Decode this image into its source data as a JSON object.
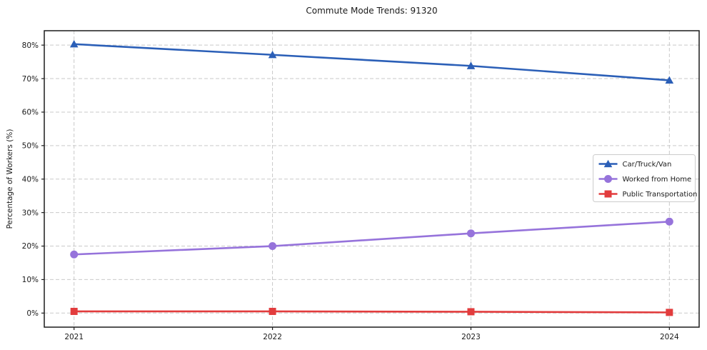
{
  "chart_data": {
    "type": "line",
    "title": "Commute Mode Trends: 91320",
    "xlabel": "",
    "ylabel": "Percentage of Workers (%)",
    "x": [
      2021,
      2022,
      2023,
      2024
    ],
    "xtick_labels": [
      "2021",
      "2022",
      "2023",
      "2024"
    ],
    "yticks": [
      0,
      10,
      20,
      30,
      40,
      50,
      60,
      70,
      80
    ],
    "ytick_labels": [
      "0%",
      "10%",
      "20%",
      "30%",
      "40%",
      "50%",
      "60%",
      "70%",
      "80%"
    ],
    "ylim": [
      -4.2,
      84.3
    ],
    "xlim": [
      2020.85,
      2024.15
    ],
    "grid": true,
    "grid_style": "dashed",
    "legend_position": "center right",
    "series": [
      {
        "name": "Car/Truck/Van",
        "marker": "triangle",
        "color": "#2b5fb7",
        "values": [
          80.3,
          77.1,
          73.8,
          69.5
        ]
      },
      {
        "name": "Worked from Home",
        "marker": "circle",
        "color": "#9673db",
        "values": [
          17.5,
          20.0,
          23.8,
          27.3
        ]
      },
      {
        "name": "Public Transportation",
        "marker": "square",
        "color": "#e23c3d",
        "values": [
          0.5,
          0.5,
          0.4,
          0.2
        ]
      }
    ],
    "colors": {
      "grid": "#c9c9c9",
      "frame": "#1c1c1c",
      "text": "#1a1a1a",
      "legend_border": "#cccccc",
      "legend_bg": "#ffffff"
    }
  }
}
